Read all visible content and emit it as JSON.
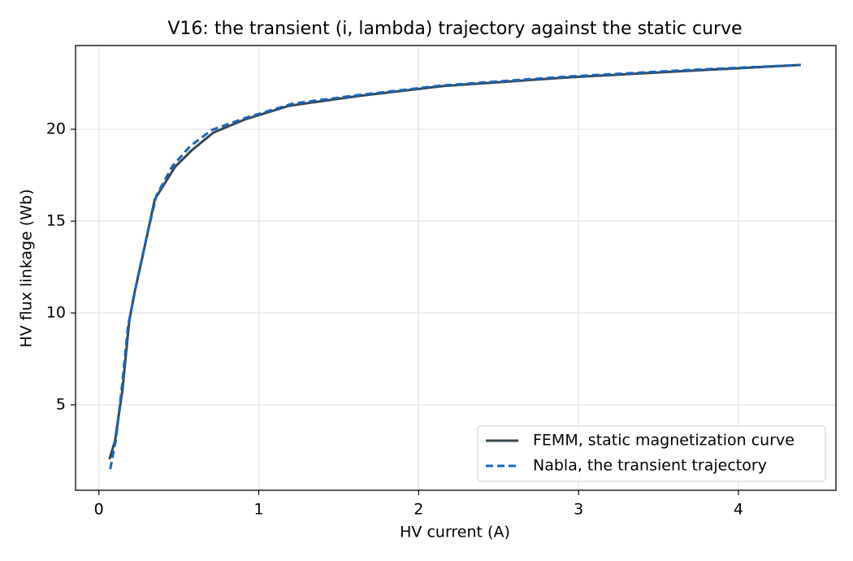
{
  "chart_data": {
    "type": "line",
    "title": "V16: the transient (i, lambda) trajectory against the static curve",
    "x_label": "HV current (A)",
    "y_label": "HV flux linkage (Wb)",
    "xlim": [
      -0.146,
      4.61
    ],
    "ylim": [
      0.35,
      24.56
    ],
    "xticks": [
      0,
      1,
      2,
      3,
      4
    ],
    "yticks": [
      5,
      10,
      15,
      20
    ],
    "grid": true,
    "legend": "lower right",
    "series": [
      {
        "name": "FEMM, static magnetization curve",
        "color": "#37474f",
        "dash": false,
        "x": [
          0.066,
          0.1,
          0.147,
          0.19,
          0.223,
          0.29,
          0.35,
          0.477,
          0.58,
          0.716,
          0.91,
          1.19,
          1.62,
          2.15,
          2.94,
          3.7,
          4.39
        ],
        "values": [
          2.04,
          3.0,
          5.8,
          9.56,
          11.1,
          13.76,
          16.2,
          17.96,
          18.85,
          19.82,
          20.53,
          21.28,
          21.81,
          22.35,
          22.83,
          23.19,
          23.5
        ]
      },
      {
        "name": "Nabla, the transient trajectory",
        "color": "#1565c0",
        "dash": true,
        "x": [
          0.071,
          0.107,
          0.147,
          0.183,
          0.239,
          0.3,
          0.36,
          0.46,
          0.57,
          0.706,
          0.909,
          1.213,
          1.62,
          2.15,
          2.94,
          3.7,
          4.39
        ],
        "values": [
          1.5,
          3.14,
          6.24,
          9.34,
          11.77,
          14.2,
          16.4,
          18.0,
          19.07,
          19.96,
          20.6,
          21.4,
          21.86,
          22.39,
          22.88,
          23.23,
          23.5
        ]
      }
    ]
  }
}
